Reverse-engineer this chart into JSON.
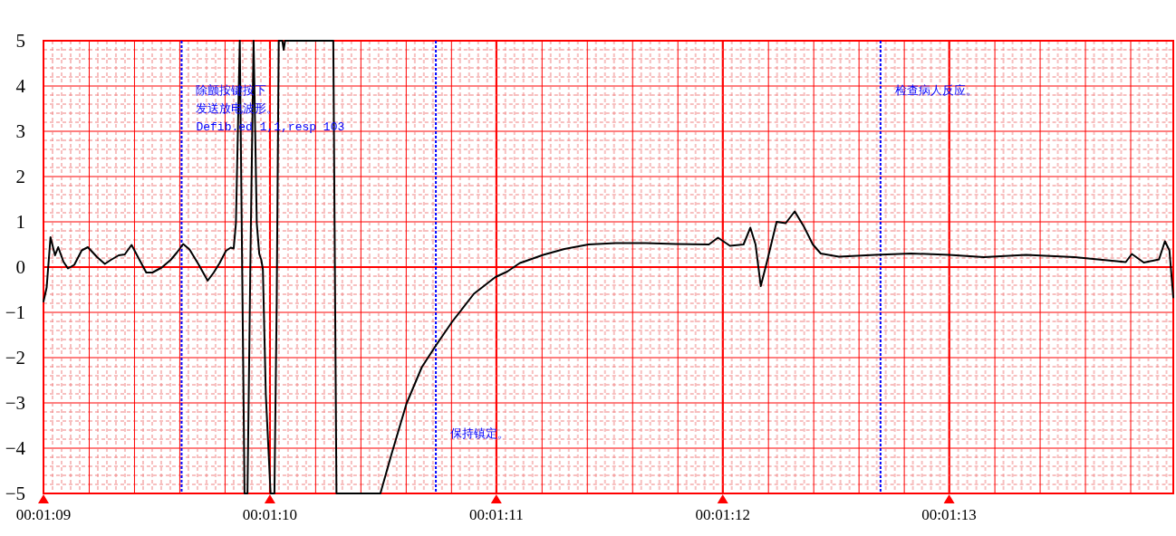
{
  "chart_data": {
    "type": "line",
    "x": [
      69.0,
      69.014,
      69.031,
      69.051,
      69.065,
      69.088,
      69.108,
      69.136,
      69.169,
      69.196,
      69.237,
      69.271,
      69.298,
      69.332,
      69.359,
      69.389,
      69.424,
      69.454,
      69.481,
      69.522,
      69.562,
      69.589,
      69.617,
      69.645,
      69.686,
      69.725,
      69.752,
      69.778,
      69.806,
      69.827,
      69.84,
      69.85,
      69.867,
      69.888,
      69.901,
      69.915,
      69.928,
      69.942,
      69.953,
      69.962,
      69.969,
      69.982,
      70.003,
      70.02,
      70.03,
      70.039,
      70.055,
      70.061,
      70.067,
      70.28,
      70.294,
      70.488,
      70.535,
      70.603,
      70.671,
      70.732,
      70.806,
      70.901,
      70.996,
      71.048,
      71.104,
      71.128,
      71.207,
      71.301,
      71.407,
      71.527,
      71.66,
      71.793,
      71.939,
      71.979,
      72.032,
      72.092,
      72.122,
      72.145,
      72.168,
      72.198,
      72.238,
      72.278,
      72.318,
      72.358,
      72.398,
      72.433,
      72.513,
      72.673,
      72.833,
      73.0,
      73.153,
      73.34,
      73.553,
      73.74,
      73.78,
      73.807,
      73.86,
      73.927,
      73.953,
      73.973,
      73.99
    ],
    "series": [
      {
        "color": "#000000",
        "values": [
          -0.76,
          -0.45,
          0.66,
          0.26,
          0.44,
          0.12,
          -0.03,
          0.05,
          0.37,
          0.44,
          0.22,
          0.07,
          0.16,
          0.26,
          0.28,
          0.49,
          0.16,
          -0.12,
          -0.12,
          -0.01,
          0.16,
          0.32,
          0.51,
          0.39,
          0.05,
          -0.3,
          -0.12,
          0.09,
          0.36,
          0.43,
          0.41,
          0.97,
          5,
          -5,
          -5,
          0.56,
          5,
          0.97,
          0.29,
          0.16,
          -0.05,
          -2.82,
          -5,
          -5,
          -0.79,
          5,
          5,
          4.8,
          5,
          5,
          -5,
          -5,
          -4.17,
          -3.02,
          -2.21,
          -1.74,
          -1.2,
          -0.59,
          -0.22,
          -0.1,
          0.09,
          0.13,
          0.27,
          0.4,
          0.5,
          0.53,
          0.53,
          0.51,
          0.5,
          0.65,
          0.47,
          0.5,
          0.87,
          0.5,
          -0.42,
          0.17,
          1.0,
          0.97,
          1.23,
          0.9,
          0.5,
          0.3,
          0.23,
          0.27,
          0.3,
          0.27,
          0.22,
          0.27,
          0.22,
          0.13,
          0.11,
          0.29,
          0.1,
          0.17,
          0.57,
          0.37,
          -0.67
        ]
      }
    ],
    "xlim": [
      69,
      73.99
    ],
    "ylim": [
      -5,
      5
    ],
    "xticks": [
      {
        "value": 69,
        "label": "00:01:09"
      },
      {
        "value": 70,
        "label": "00:01:10"
      },
      {
        "value": 71,
        "label": "00:01:11"
      },
      {
        "value": 72,
        "label": "00:01:12"
      },
      {
        "value": 73,
        "label": "00:01:13"
      }
    ],
    "yticks": [
      {
        "value": -5,
        "label": "−5"
      },
      {
        "value": -4,
        "label": "−4"
      },
      {
        "value": -3,
        "label": "−3"
      },
      {
        "value": -2,
        "label": "−2"
      },
      {
        "value": -1,
        "label": "−1"
      },
      0,
      1,
      2,
      3,
      4,
      5
    ],
    "grid": true,
    "ref_lines": [
      {
        "axis": "x",
        "value": 69.61,
        "color": "#0000ff",
        "line_style": "dashed"
      },
      {
        "axis": "x",
        "value": 70.733,
        "color": "#0000ff",
        "line_style": "dashed"
      },
      {
        "axis": "x",
        "value": 72.697,
        "color": "#0000ff",
        "line_style": "dashed"
      }
    ],
    "annotations": [
      {
        "text": "除颤按键按下",
        "x": 69.61,
        "y": 3.9
      },
      {
        "text": "发送放电波形。",
        "x": 69.61,
        "y": 3.5
      },
      {
        "text": "Defib.ed 1,1,resp 103",
        "x": 69.61,
        "y": 3.1
      },
      {
        "text": "保持镇定。",
        "x": 70.733,
        "y": -3.68
      },
      {
        "text": "检查病人反应。",
        "x": 72.697,
        "y": 3.9
      }
    ]
  }
}
